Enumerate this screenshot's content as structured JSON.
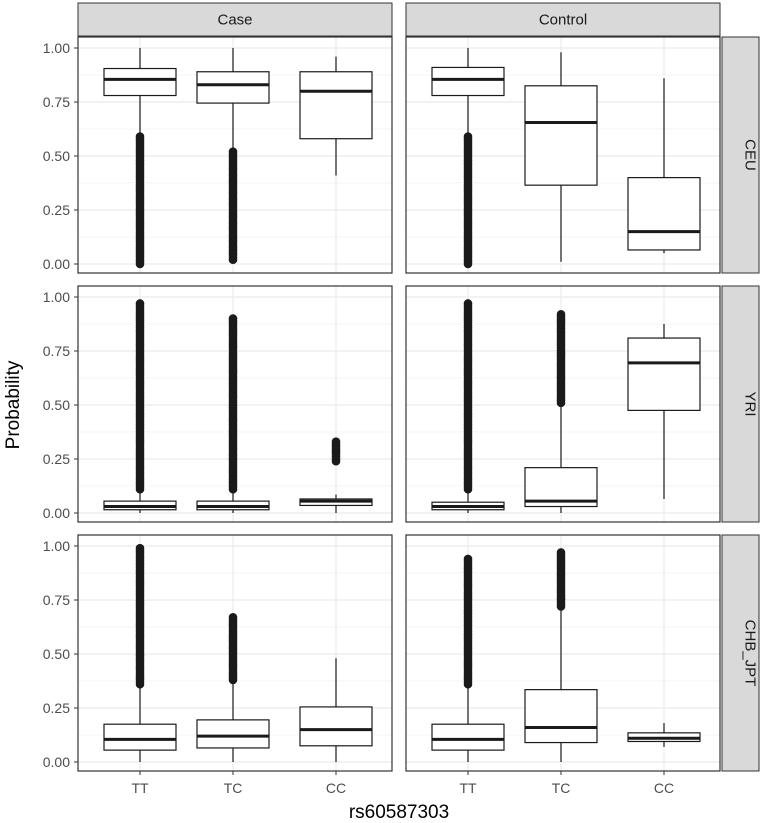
{
  "chart_data": {
    "type": "boxplot",
    "facets": {
      "columns": [
        "Case",
        "Control"
      ],
      "rows": [
        "CEU",
        "YRI",
        "CHB_JPT"
      ]
    },
    "xlabel": "rs60587303",
    "ylabel": "Probability",
    "x_categories": [
      "TT",
      "TC",
      "CC"
    ],
    "ylim": [
      0,
      1
    ],
    "y_ticks": [
      0,
      0.25,
      0.5,
      0.75,
      1
    ],
    "y_tick_labels": [
      "0.00",
      "0.25",
      "0.50",
      "0.75",
      "1.00"
    ],
    "theme": "black-and-white with grey strips",
    "grid": true,
    "panels": [
      {
        "column": "Case",
        "row": "CEU",
        "boxes": [
          {
            "x": "TT",
            "min": 0.59,
            "q1": 0.78,
            "median": 0.855,
            "q3": 0.905,
            "max": 1.0,
            "outliers_range": [
              0.0,
              0.59
            ]
          },
          {
            "x": "TC",
            "min": 0.52,
            "q1": 0.745,
            "median": 0.83,
            "q3": 0.89,
            "max": 1.0,
            "outliers_range": [
              0.02,
              0.52
            ]
          },
          {
            "x": "CC",
            "min": 0.41,
            "q1": 0.58,
            "median": 0.8,
            "q3": 0.89,
            "max": 0.96,
            "outliers_range": null
          }
        ]
      },
      {
        "column": "Control",
        "row": "CEU",
        "boxes": [
          {
            "x": "TT",
            "min": 0.59,
            "q1": 0.78,
            "median": 0.855,
            "q3": 0.91,
            "max": 1.0,
            "outliers_range": [
              0.0,
              0.59
            ]
          },
          {
            "x": "TC",
            "min": 0.01,
            "q1": 0.365,
            "median": 0.655,
            "q3": 0.825,
            "max": 0.98,
            "outliers_range": null
          },
          {
            "x": "CC",
            "min": 0.05,
            "q1": 0.065,
            "median": 0.15,
            "q3": 0.4,
            "max": 0.86,
            "outliers_range": null
          }
        ]
      },
      {
        "column": "Case",
        "row": "YRI",
        "boxes": [
          {
            "x": "TT",
            "min": 0.0,
            "q1": 0.015,
            "median": 0.03,
            "q3": 0.055,
            "max": 0.11,
            "outliers_range": [
              0.11,
              0.97
            ]
          },
          {
            "x": "TC",
            "min": 0.0,
            "q1": 0.015,
            "median": 0.03,
            "q3": 0.055,
            "max": 0.11,
            "outliers_range": [
              0.11,
              0.9
            ]
          },
          {
            "x": "CC",
            "min": 0.0,
            "q1": 0.035,
            "median": 0.055,
            "q3": 0.065,
            "max": 0.085,
            "outliers_range": [
              0.24,
              0.33
            ]
          }
        ]
      },
      {
        "column": "Control",
        "row": "YRI",
        "boxes": [
          {
            "x": "TT",
            "min": 0.0,
            "q1": 0.015,
            "median": 0.03,
            "q3": 0.05,
            "max": 0.11,
            "outliers_range": [
              0.11,
              0.97
            ]
          },
          {
            "x": "TC",
            "min": 0.0,
            "q1": 0.03,
            "median": 0.055,
            "q3": 0.21,
            "max": 0.51,
            "outliers_range": [
              0.51,
              0.92
            ]
          },
          {
            "x": "CC",
            "min": 0.065,
            "q1": 0.475,
            "median": 0.695,
            "q3": 0.81,
            "max": 0.875,
            "outliers_range": null
          }
        ]
      },
      {
        "column": "Case",
        "row": "CHB_JPT",
        "boxes": [
          {
            "x": "TT",
            "min": 0.0,
            "q1": 0.055,
            "median": 0.105,
            "q3": 0.175,
            "max": 0.36,
            "outliers_range": [
              0.36,
              0.99
            ]
          },
          {
            "x": "TC",
            "min": 0.0,
            "q1": 0.065,
            "median": 0.12,
            "q3": 0.195,
            "max": 0.38,
            "outliers_range": [
              0.38,
              0.67
            ]
          },
          {
            "x": "CC",
            "min": 0.0,
            "q1": 0.075,
            "median": 0.15,
            "q3": 0.255,
            "max": 0.48,
            "outliers_range": null
          }
        ]
      },
      {
        "column": "Control",
        "row": "CHB_JPT",
        "boxes": [
          {
            "x": "TT",
            "min": 0.0,
            "q1": 0.055,
            "median": 0.105,
            "q3": 0.175,
            "max": 0.36,
            "outliers_range": [
              0.36,
              0.94
            ]
          },
          {
            "x": "TC",
            "min": 0.0,
            "q1": 0.09,
            "median": 0.16,
            "q3": 0.335,
            "max": 0.71,
            "outliers_range": [
              0.72,
              0.97
            ]
          },
          {
            "x": "CC",
            "min": 0.07,
            "q1": 0.095,
            "median": 0.11,
            "q3": 0.135,
            "max": 0.18,
            "outliers_range": null
          }
        ]
      }
    ]
  },
  "colors": {
    "panel_background": "#ffffff",
    "panel_border": "#333333",
    "grid_major": "#ebebeb",
    "grid_minor": "#f5f5f5",
    "strip_fill": "#d9d9d9",
    "box_fill": "#ffffff",
    "box_line": "#1a1a1a",
    "median_line": "#1a1a1a",
    "outlier_point": "#1a1a1a"
  }
}
